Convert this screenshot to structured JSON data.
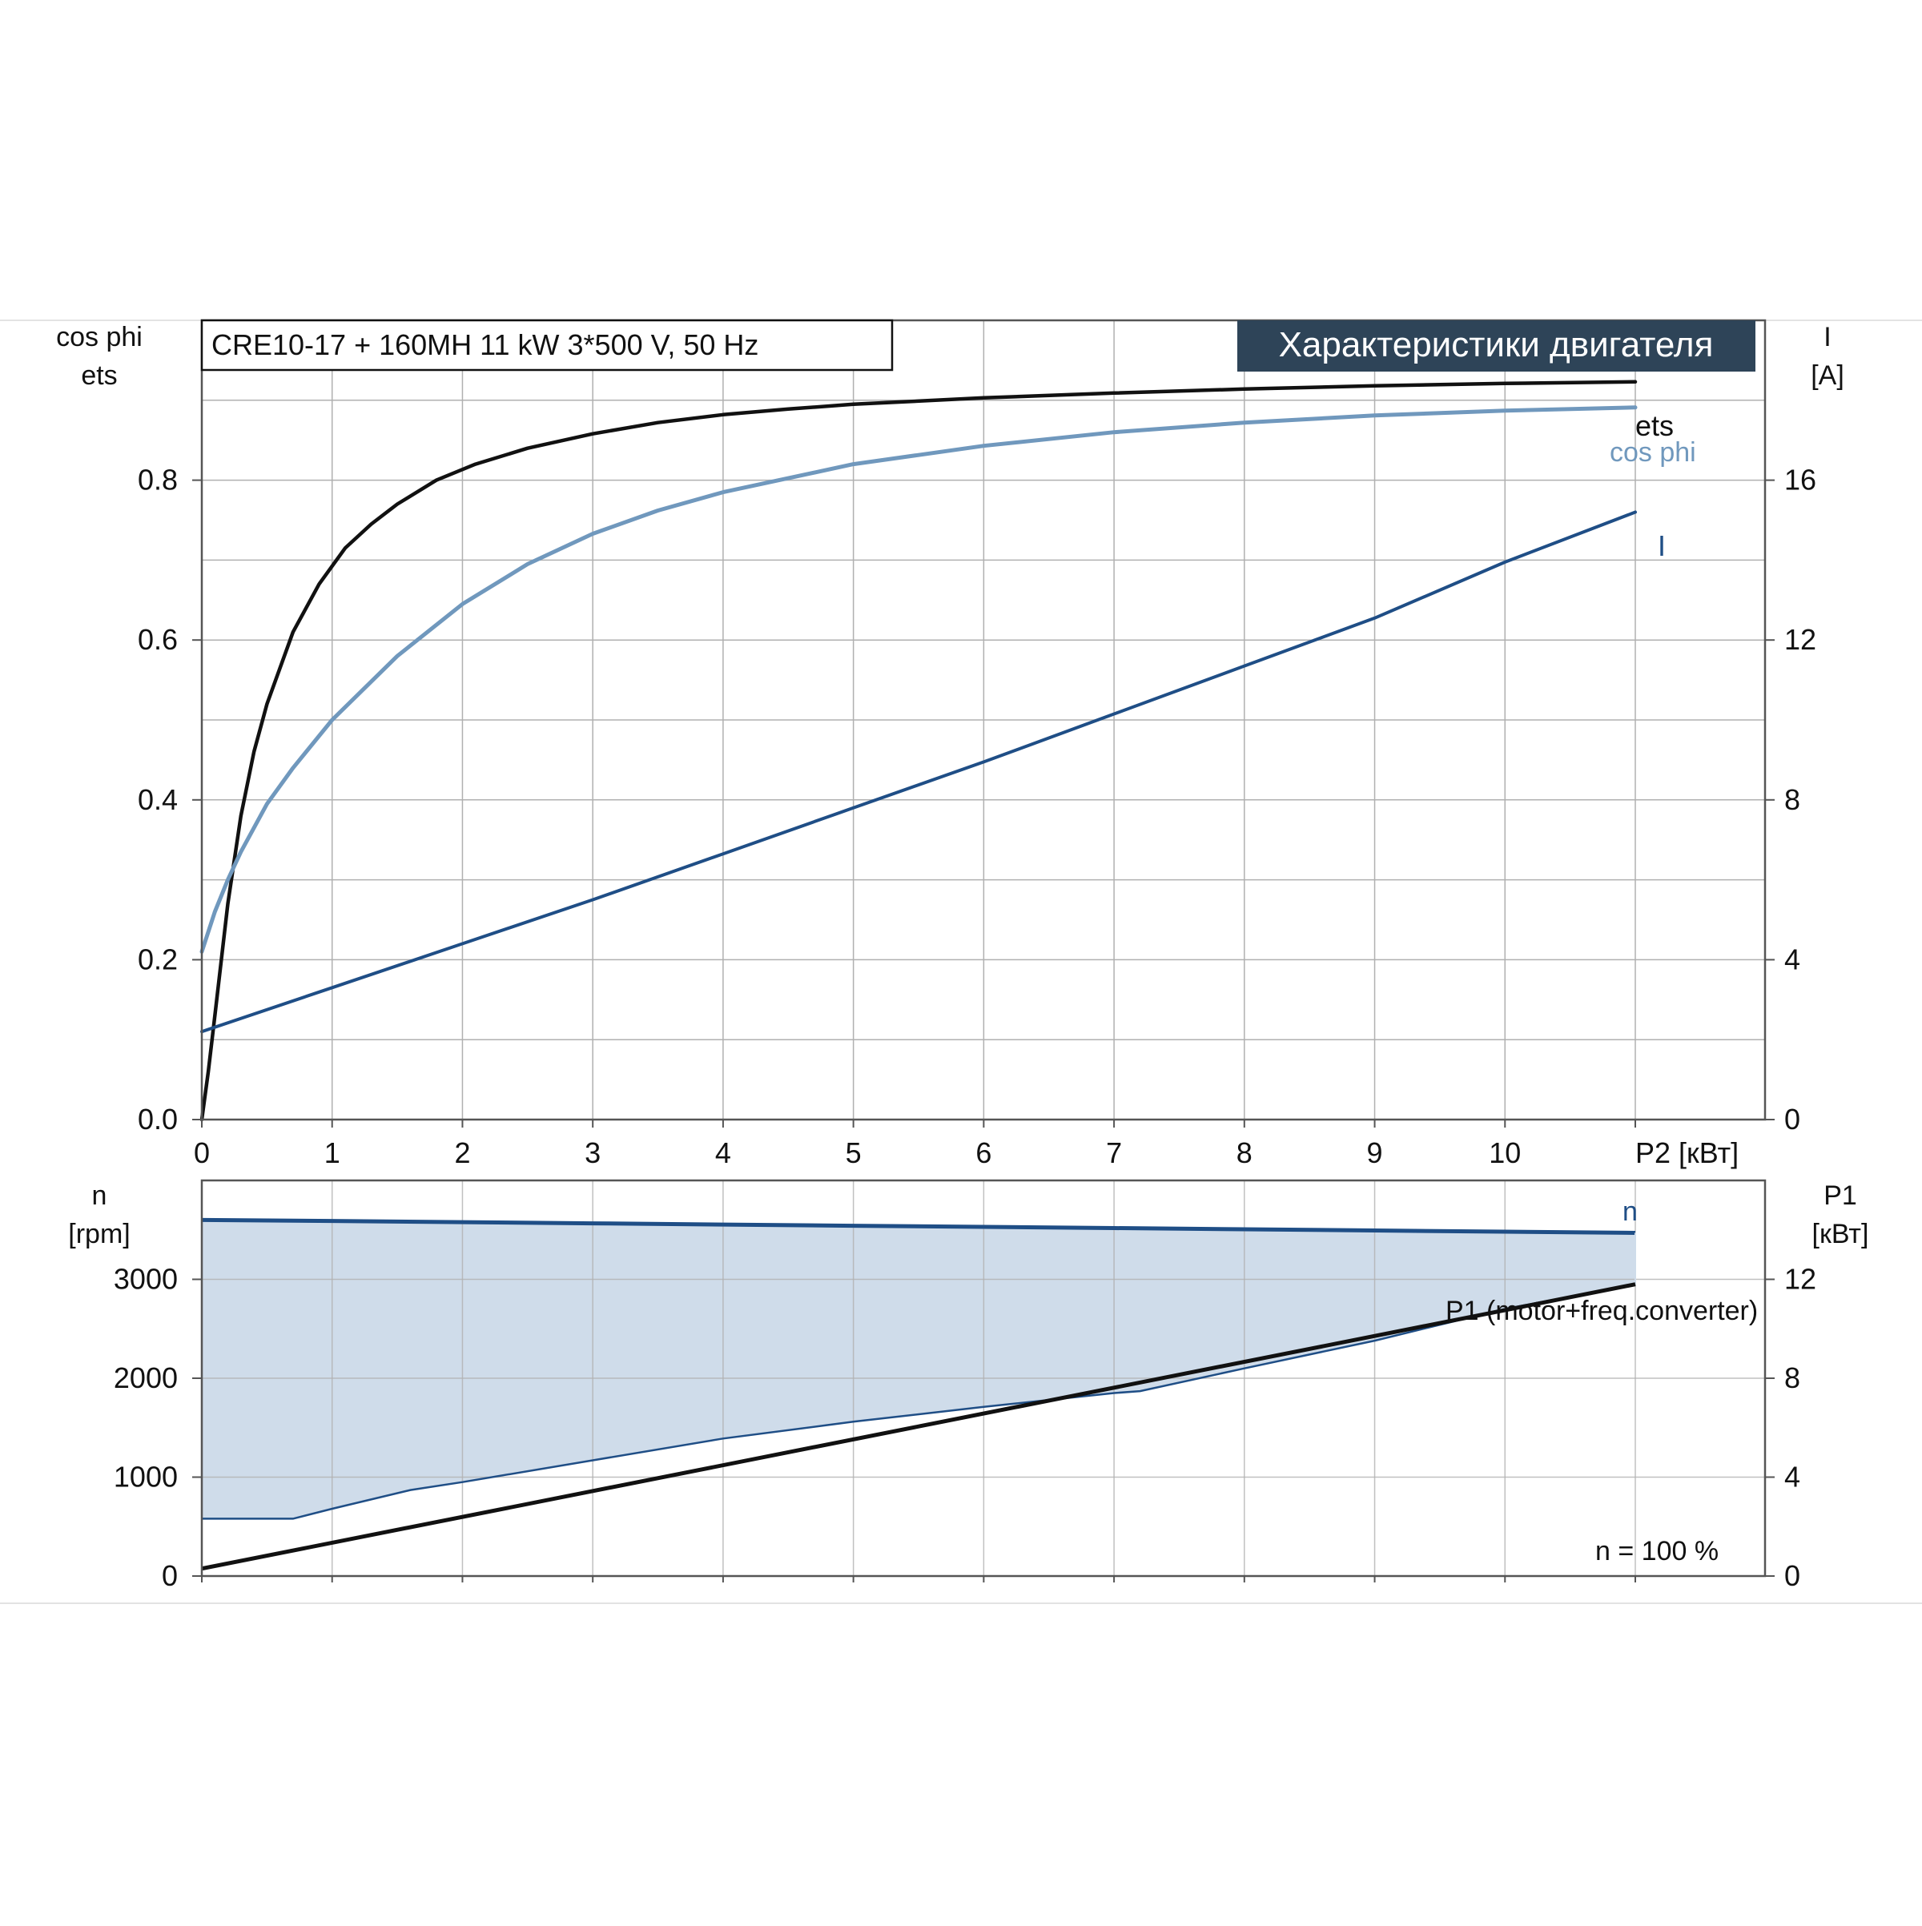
{
  "header": {
    "model": "CRE10-17 + 160MH   11 kW   3*500 V, 50 Hz",
    "title": "Характеристики двигателя"
  },
  "colors": {
    "ets": "#111111",
    "cos_phi": "#7098bd",
    "current": "#1f4e86",
    "speed": "#1f4e86",
    "power": "#111111",
    "fill": "#cfdcea",
    "grid": "#b0b0b0",
    "title_bg": "#2e4458"
  },
  "chart_data": [
    {
      "type": "line",
      "title": "Характеристики двигателя",
      "xlabel": "P2 [кВт]",
      "xlim": [
        0,
        12
      ],
      "x_ticks": [
        "0",
        "1",
        "2",
        "3",
        "4",
        "5",
        "6",
        "7",
        "8",
        "9",
        "10",
        ""
      ],
      "ylabel_left": [
        "cos phi",
        "ets"
      ],
      "ylim_left": [
        0,
        1.0
      ],
      "y_ticks_left": [
        "0.0",
        "0.2",
        "0.4",
        "0.6",
        "0.8"
      ],
      "ylabel_right": [
        "I",
        "[A]"
      ],
      "ylim_right": [
        0,
        20
      ],
      "y_ticks_right": [
        "0",
        "4",
        "8",
        "12",
        "16"
      ],
      "grid": true,
      "series": [
        {
          "name": "ets",
          "axis": "left",
          "x": [
            0,
            0.05,
            0.1,
            0.15,
            0.2,
            0.3,
            0.4,
            0.5,
            0.7,
            0.9,
            1.1,
            1.3,
            1.5,
            1.8,
            2.1,
            2.5,
            3,
            3.5,
            4,
            4.5,
            5,
            6,
            7,
            8,
            9,
            10,
            11
          ],
          "y": [
            0.0,
            0.06,
            0.13,
            0.2,
            0.27,
            0.38,
            0.46,
            0.52,
            0.61,
            0.67,
            0.715,
            0.745,
            0.77,
            0.8,
            0.82,
            0.84,
            0.858,
            0.872,
            0.882,
            0.889,
            0.895,
            0.903,
            0.909,
            0.914,
            0.918,
            0.921,
            0.923
          ]
        },
        {
          "name": "cos phi",
          "axis": "left",
          "x": [
            0,
            0.1,
            0.2,
            0.3,
            0.5,
            0.7,
            1,
            1.5,
            2,
            2.5,
            3,
            3.5,
            4,
            5,
            6,
            7,
            8,
            9,
            10,
            11
          ],
          "y": [
            0.21,
            0.26,
            0.3,
            0.335,
            0.395,
            0.44,
            0.5,
            0.58,
            0.645,
            0.695,
            0.733,
            0.762,
            0.785,
            0.82,
            0.843,
            0.86,
            0.872,
            0.881,
            0.887,
            0.891
          ]
        },
        {
          "name": "I",
          "axis": "right",
          "x": [
            0,
            1,
            2,
            3,
            4,
            5,
            6,
            7,
            8,
            9,
            10,
            11
          ],
          "y": [
            2.2,
            3.3,
            4.4,
            5.5,
            6.65,
            7.8,
            8.95,
            10.15,
            11.35,
            12.55,
            13.95,
            15.2
          ]
        }
      ]
    },
    {
      "type": "area",
      "ylabel_left": [
        "n",
        "[rpm]"
      ],
      "ylim_left": [
        0,
        4000
      ],
      "y_ticks_left": [
        "0",
        "1000",
        "2000",
        "3000"
      ],
      "ylabel_right": [
        "P1",
        "[кВт]"
      ],
      "ylim_right": [
        0,
        16
      ],
      "y_ticks_right": [
        "0",
        "4",
        "8",
        "12"
      ],
      "xlim": [
        0,
        12
      ],
      "grid": true,
      "annotation": "n = 100 %",
      "series": [
        {
          "name": "n",
          "axis": "left",
          "x": [
            0,
            1,
            2,
            3,
            4,
            5,
            6,
            7,
            8,
            9,
            10,
            11
          ],
          "y": [
            3600,
            3590,
            3578,
            3566,
            3554,
            3542,
            3530,
            3518,
            3506,
            3494,
            3482,
            3470
          ]
        },
        {
          "name": "",
          "axis": "left",
          "x": [
            0,
            0.7,
            1.0,
            1.6,
            2,
            3,
            4,
            5,
            6,
            7,
            7.2,
            8,
            9,
            10,
            11
          ],
          "y": [
            580,
            580,
            680,
            870,
            950,
            1170,
            1390,
            1560,
            1710,
            1850,
            1870,
            2100,
            2380,
            2700,
            2950
          ]
        },
        {
          "name": "P1 (motor+freq.converter)",
          "axis": "right",
          "x": [
            0,
            11
          ],
          "y": [
            0.3,
            11.8
          ]
        }
      ]
    }
  ]
}
